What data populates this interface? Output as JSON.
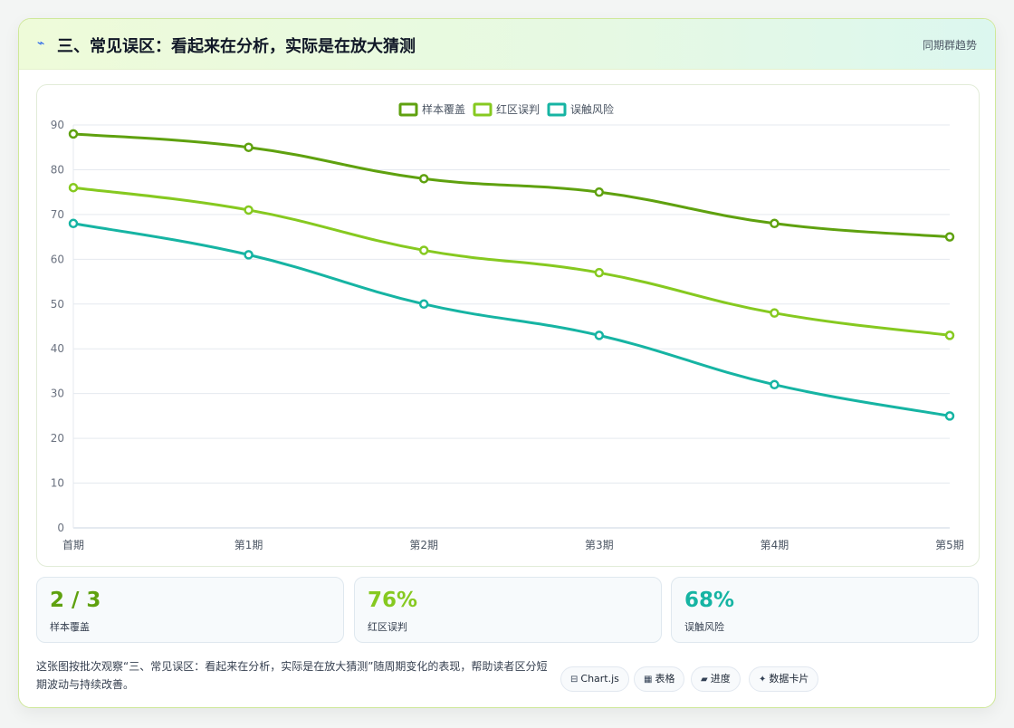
{
  "header": {
    "icon": "lightning-icon",
    "title": "三、常见误区：看起来在分析，实际是在放大猜测",
    "note": "同期群趋势"
  },
  "chart_data": {
    "type": "line",
    "title": "",
    "xlabel": "",
    "ylabel": "",
    "categories": [
      "首期",
      "第1期",
      "第2期",
      "第3期",
      "第4期",
      "第5期"
    ],
    "ylim": [
      0,
      90
    ],
    "yticks": [
      0,
      10,
      20,
      30,
      40,
      50,
      60,
      70,
      80,
      90
    ],
    "grid": true,
    "legend_position": "top-center",
    "series": [
      {
        "name": "样本覆盖",
        "color": "#5fa10f",
        "values": [
          88,
          85,
          78,
          75,
          68,
          65
        ]
      },
      {
        "name": "红区误判",
        "color": "#86c920",
        "values": [
          76,
          71,
          62,
          57,
          48,
          43
        ]
      },
      {
        "name": "误触风险",
        "color": "#16b4a3",
        "values": [
          68,
          61,
          50,
          43,
          32,
          25
        ]
      }
    ]
  },
  "stats": [
    {
      "value": "2 / 3",
      "label": "样本覆盖",
      "color": "#5fa10f"
    },
    {
      "value": "76%",
      "label": "红区误判",
      "color": "#86c920"
    },
    {
      "value": "68%",
      "label": "误触风险",
      "color": "#16b4a3"
    }
  ],
  "footer": {
    "text": "这张图按批次观察“三、常见误区：看起来在分析，实际是在放大猜测”随周期变化的表现，帮助读者区分短期波动与持续改善。",
    "tags": [
      {
        "icon": "⊟",
        "icon_name": "chart-icon",
        "label": "Chart.js"
      },
      {
        "icon": "▦",
        "icon_name": "table-icon",
        "label": "表格"
      },
      {
        "icon": "▰",
        "icon_name": "progress-icon",
        "label": "进度"
      },
      {
        "icon": "✦",
        "icon_name": "sparkle-icon",
        "label": "数据卡片"
      }
    ]
  }
}
